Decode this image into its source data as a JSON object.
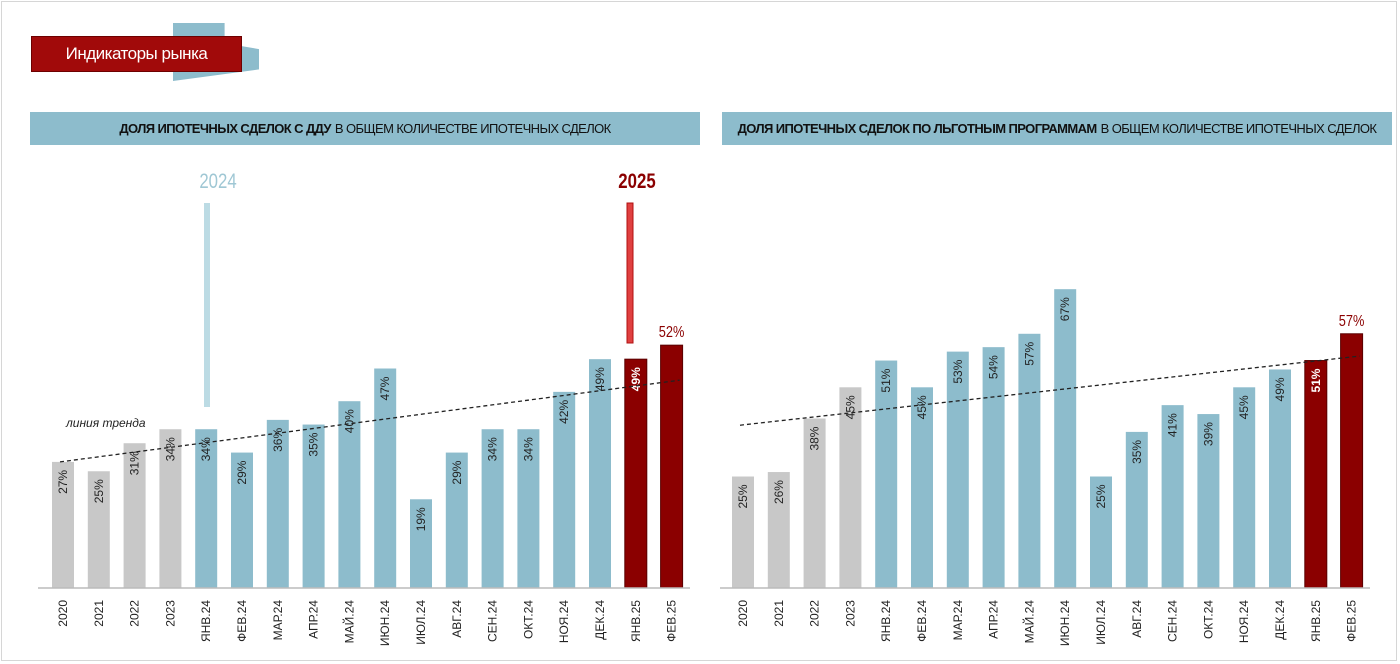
{
  "header": {
    "badge": "Индикаторы рынка"
  },
  "colors": {
    "gray": "#c8c8c8",
    "blue": "#8dbccc",
    "red": "#8b0000",
    "trend": "#222222"
  },
  "chart_data": [
    {
      "type": "bar",
      "title_bold": "ДОЛЯ ИПОТЕЧНЫХ СДЕЛОК С ДДУ",
      "title_rest": "В ОБЩЕМ КОЛИЧЕСТВЕ ИПОТЕЧНЫХ СДЕЛОК",
      "categories": [
        "2020",
        "2021",
        "2022",
        "2023",
        "ЯНВ.24",
        "ФЕВ.24",
        "МАР.24",
        "АПР.24",
        "МАЙ.24",
        "ИЮН.24",
        "ИЮЛ.24",
        "АВГ.24",
        "СЕН.24",
        "ОКТ.24",
        "НОЯ.24",
        "ДЕК.24",
        "ЯНВ.25",
        "ФЕВ.25"
      ],
      "values": [
        27,
        25,
        31,
        34,
        34,
        29,
        36,
        35,
        40,
        47,
        19,
        29,
        34,
        34,
        42,
        49,
        49,
        52
      ],
      "groups": [
        "gray",
        "gray",
        "gray",
        "gray",
        "blue",
        "blue",
        "blue",
        "blue",
        "blue",
        "blue",
        "blue",
        "blue",
        "blue",
        "blue",
        "blue",
        "blue",
        "red",
        "red"
      ],
      "value_unit": "%",
      "trend": {
        "label": "линия тренда",
        "start": 27,
        "end": 44.5
      },
      "year_markers": [
        {
          "label": "2024",
          "color": "blue"
        },
        {
          "label": "2025",
          "color": "red"
        }
      ],
      "ylim": [
        0,
        60
      ]
    },
    {
      "type": "bar",
      "title_bold": "ДОЛЯ ИПОТЕЧНЫХ СДЕЛОК ПО ЛЬГОТНЫМ ПРОГРАММАМ",
      "title_rest": "В ОБЩЕМ КОЛИЧЕСТВЕ ИПОТЕЧНЫХ СДЕЛОК",
      "categories": [
        "2020",
        "2021",
        "2022",
        "2023",
        "ЯНВ.24",
        "ФЕВ.24",
        "МАР.24",
        "АПР.24",
        "МАЙ.24",
        "ИЮН.24",
        "ИЮЛ.24",
        "АВГ.24",
        "СЕН.24",
        "ОКТ.24",
        "НОЯ.24",
        "ДЕК.24",
        "ЯНВ.25",
        "ФЕВ.25"
      ],
      "values": [
        25,
        26,
        38,
        45,
        51,
        45,
        53,
        54,
        57,
        67,
        25,
        35,
        41,
        39,
        45,
        49,
        51,
        57
      ],
      "groups": [
        "gray",
        "gray",
        "gray",
        "gray",
        "blue",
        "blue",
        "blue",
        "blue",
        "blue",
        "blue",
        "blue",
        "blue",
        "blue",
        "blue",
        "blue",
        "blue",
        "red",
        "red"
      ],
      "value_unit": "%",
      "trend": {
        "start": 36.5,
        "end": 52
      },
      "ylim": [
        0,
        70
      ]
    }
  ]
}
